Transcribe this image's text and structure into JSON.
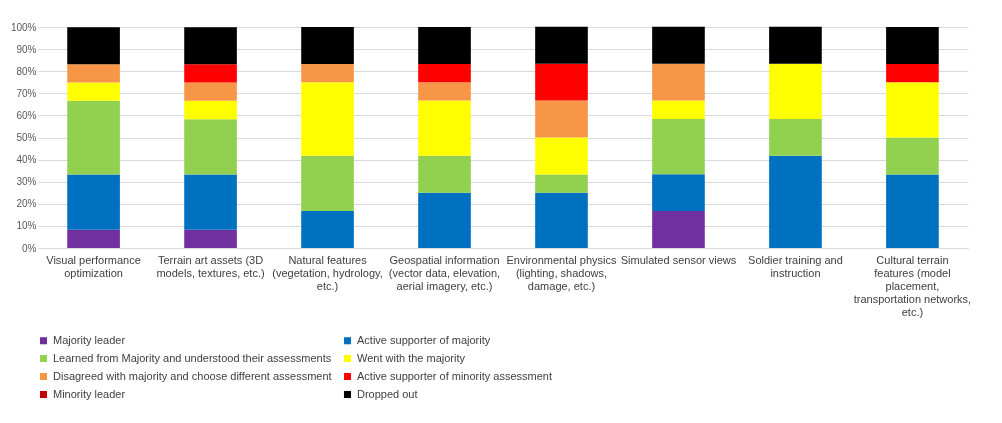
{
  "chart_data": {
    "type": "bar",
    "stacked": true,
    "categories": [
      "Visual performance optimization",
      "Terrain art assets (3D models, textures, etc.)",
      "Natural features (vegetation, hydrology, etc.)",
      "Geospatial information (vector data, elevation, aerial imagery, etc.)",
      "Environmental physics (lighting, shadows, damage, etc.)",
      "Simulated sensor views",
      "Soldier training and instruction",
      "Cultural terrain features (model placement, transportation networks, etc.)"
    ],
    "series": [
      {
        "name": "Majority leader",
        "color": "#7030a0",
        "values": [
          8.3,
          8.3,
          0,
          0,
          0,
          16.7,
          0,
          0
        ]
      },
      {
        "name": "Active supporter of majority",
        "color": "#0070c0",
        "values": [
          25,
          25,
          16.7,
          25,
          25,
          16.7,
          41.7,
          33.3
        ]
      },
      {
        "name": "Learned from Majority and understood their assessments",
        "color": "#92d050",
        "values": [
          33.3,
          25,
          25,
          16.7,
          8.3,
          25,
          16.7,
          16.7
        ]
      },
      {
        "name": "Went with the majority",
        "color": "#ffff00",
        "values": [
          8.3,
          8.3,
          33.3,
          25,
          16.7,
          8.3,
          25,
          25
        ]
      },
      {
        "name": "Disagreed with majority and choose different assessment",
        "color": "#f79646",
        "values": [
          8.3,
          8.3,
          8.3,
          8.3,
          16.7,
          16.7,
          0,
          0
        ]
      },
      {
        "name": "Active supporter of minority assessment",
        "color": "#ff0000",
        "values": [
          0,
          8.3,
          0,
          8.3,
          16.7,
          0,
          0,
          8.3
        ]
      },
      {
        "name": "Minority leader",
        "color": "#c00000",
        "values": [
          0,
          0,
          0,
          0,
          0,
          0,
          0,
          0
        ]
      },
      {
        "name": "Dropped out",
        "color": "#000000",
        "values": [
          16.7,
          16.7,
          16.7,
          16.7,
          16.7,
          16.7,
          16.7,
          16.7
        ]
      }
    ],
    "ylim": [
      0,
      100
    ],
    "yticks": [
      {
        "value": 0,
        "label": "0%"
      },
      {
        "value": 10,
        "label": "10%"
      },
      {
        "value": 20,
        "label": "20%"
      },
      {
        "value": 30,
        "label": "30%"
      },
      {
        "value": 40,
        "label": "40%"
      },
      {
        "value": 50,
        "label": "50%"
      },
      {
        "value": 60,
        "label": "60%"
      },
      {
        "value": 70,
        "label": "70%"
      },
      {
        "value": 80,
        "label": "80%"
      },
      {
        "value": 90,
        "label": "90%"
      },
      {
        "value": 100,
        "label": "100%"
      }
    ],
    "grid": "y",
    "legend": "bottom"
  }
}
